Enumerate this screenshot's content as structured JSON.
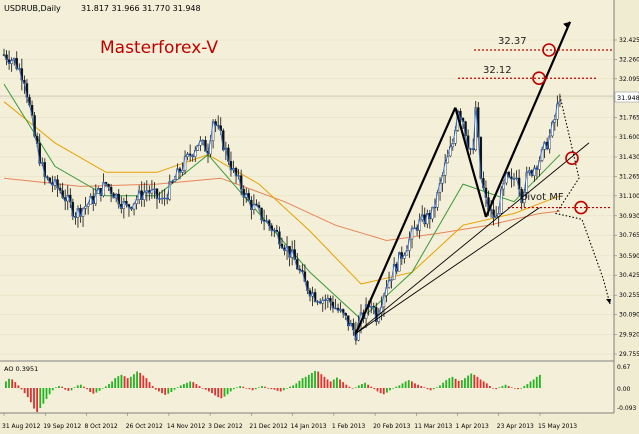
{
  "chart_data": {
    "type": "candlestick",
    "header": {
      "symbol_tf": "USDRUB,Daily",
      "ohlc": "31.817 31.966 31.770 31.948"
    },
    "watermark": "Masterforex-V",
    "price_axis": {
      "range": [
        29.74,
        32.58
      ],
      "ticks": [
        "32.425",
        "32.260",
        "32.095",
        "31.930",
        "31.765",
        "31.600",
        "31.430",
        "31.265",
        "31.100",
        "30.930",
        "30.765",
        "30.590",
        "30.425",
        "30.255",
        "30.090",
        "29.920",
        "29.755"
      ],
      "current_price": "31.948",
      "current_value": 31.948
    },
    "date_axis": [
      "31 Aug 2012",
      "19 Sep 2012",
      "8 Oct 2012",
      "26 Oct 2012",
      "14 Nov 2012",
      "3 Dec 2012",
      "21 Dec 2012",
      "14 Jan 2013",
      "1 Feb 2013",
      "20 Feb 2013",
      "11 Mar 2013",
      "1 Apr 2013",
      "23 Apr 2013",
      "15 May 2013"
    ],
    "candles": {
      "count": 188,
      "close_path": [
        [
          0,
          32.3
        ],
        [
          4,
          32.25
        ],
        [
          8,
          32.1
        ],
        [
          12,
          31.6
        ],
        [
          16,
          31.25
        ],
        [
          22,
          31.15
        ],
        [
          28,
          30.95
        ],
        [
          34,
          31.05
        ],
        [
          40,
          31.2
        ],
        [
          48,
          31.0
        ],
        [
          56,
          31.15
        ],
        [
          62,
          31.05
        ],
        [
          70,
          31.35
        ],
        [
          76,
          31.55
        ],
        [
          80,
          31.5
        ],
        [
          82,
          31.75
        ],
        [
          85,
          31.6
        ],
        [
          90,
          31.3
        ],
        [
          96,
          31.05
        ],
        [
          102,
          30.9
        ],
        [
          108,
          30.75
        ],
        [
          114,
          30.55
        ],
        [
          118,
          30.35
        ],
        [
          122,
          30.25
        ],
        [
          128,
          30.2
        ],
        [
          134,
          30.05
        ],
        [
          138,
          29.93
        ],
        [
          140,
          30.05
        ],
        [
          144,
          30.2
        ],
        [
          146,
          30.08
        ],
        [
          150,
          30.35
        ],
        [
          156,
          30.6
        ],
        [
          162,
          30.85
        ],
        [
          168,
          30.95
        ],
        [
          170,
          31.1
        ],
        [
          173,
          31.35
        ],
        [
          176,
          31.55
        ],
        [
          178,
          31.85
        ],
        [
          180,
          31.75
        ],
        [
          182,
          31.55
        ],
        [
          184,
          31.45
        ],
        [
          185,
          31.85
        ],
        [
          186,
          31.55
        ],
        [
          187,
          31.25
        ],
        [
          189,
          31.05
        ],
        [
          191,
          30.95
        ],
        [
          193,
          30.9
        ],
        [
          195,
          31.1
        ],
        [
          197,
          31.25
        ],
        [
          199,
          31.2
        ],
        [
          201,
          31.3
        ],
        [
          203,
          31.1
        ],
        [
          205,
          31.25
        ],
        [
          208,
          31.35
        ],
        [
          211,
          31.45
        ],
        [
          214,
          31.6
        ],
        [
          216,
          31.75
        ],
        [
          217,
          31.85
        ],
        [
          218,
          31.95
        ]
      ]
    },
    "indicators": {
      "ma_fast": [
        [
          0,
          32.05
        ],
        [
          20,
          31.35
        ],
        [
          40,
          31.1
        ],
        [
          60,
          31.1
        ],
        [
          80,
          31.45
        ],
        [
          100,
          30.95
        ],
        [
          120,
          30.45
        ],
        [
          140,
          30.05
        ],
        [
          160,
          30.45
        ],
        [
          180,
          31.2
        ],
        [
          200,
          31.05
        ],
        [
          218,
          31.45
        ]
      ],
      "ma_mid": [
        [
          0,
          31.9
        ],
        [
          20,
          31.55
        ],
        [
          40,
          31.3
        ],
        [
          60,
          31.3
        ],
        [
          80,
          31.45
        ],
        [
          100,
          31.2
        ],
        [
          120,
          30.8
        ],
        [
          140,
          30.35
        ],
        [
          160,
          30.45
        ],
        [
          180,
          30.85
        ],
        [
          200,
          30.95
        ],
        [
          218,
          31.1
        ]
      ],
      "ma_slow": [
        [
          0,
          31.25
        ],
        [
          30,
          31.18
        ],
        [
          60,
          31.2
        ],
        [
          85,
          31.25
        ],
        [
          110,
          31.05
        ],
        [
          130,
          30.85
        ],
        [
          150,
          30.72
        ],
        [
          170,
          30.78
        ],
        [
          190,
          30.85
        ],
        [
          210,
          30.95
        ],
        [
          218,
          30.97
        ]
      ]
    },
    "annotations": {
      "levels": [
        {
          "label": "32.37",
          "value": 32.34
        },
        {
          "label": "32.12",
          "value": 32.1
        },
        {
          "label": "pivot MF",
          "value": 31.0
        }
      ]
    },
    "oscillator": {
      "label": "AO 0.3951",
      "ticks": [
        "0.67",
        "0.00",
        "-0.093"
      ],
      "range": [
        -0.84,
        0.67
      ],
      "bars": [
        0.2,
        0.28,
        0.26,
        0.18,
        0.08,
        -0.05,
        -0.18,
        -0.32,
        -0.5,
        -0.72,
        -0.84,
        -0.7,
        -0.55,
        -0.38,
        -0.22,
        -0.08,
        0.02,
        0.06,
        0.04,
        -0.06,
        -0.1,
        -0.08,
        0.02,
        0.08,
        0.1,
        0.04,
        -0.04,
        -0.14,
        -0.2,
        -0.16,
        -0.1,
        -0.02,
        0.05,
        0.12,
        0.2,
        0.3,
        0.36,
        0.4,
        0.36,
        0.3,
        0.34,
        0.42,
        0.5,
        0.46,
        0.38,
        0.3,
        0.18,
        0.06,
        -0.06,
        -0.12,
        -0.18,
        -0.24,
        -0.2,
        -0.14,
        -0.06,
        0.02,
        0.08,
        0.12,
        0.16,
        0.2,
        0.18,
        0.12,
        0.06,
        0.0,
        -0.06,
        -0.12,
        -0.18,
        -0.26,
        -0.32,
        -0.36,
        -0.3,
        -0.22,
        -0.12,
        -0.04,
        0.02,
        0.06,
        0.04,
        0.0,
        -0.04,
        -0.08,
        -0.04,
        0.02,
        0.06,
        0.04,
        0.0,
        -0.04,
        -0.06,
        -0.1,
        -0.12,
        -0.08,
        -0.02,
        0.04,
        0.08,
        0.14,
        0.22,
        0.3,
        0.34,
        0.4,
        0.46,
        0.52,
        0.5,
        0.42,
        0.34,
        0.26,
        0.2,
        0.26,
        0.32,
        0.26,
        0.18,
        0.1,
        0.04,
        0.0,
        0.02,
        0.08,
        0.12,
        0.16,
        0.1,
        0.04,
        -0.04,
        -0.12,
        -0.18,
        -0.22,
        -0.16,
        -0.08,
        0.0,
        0.04,
        0.08,
        0.14,
        0.2,
        0.24,
        0.2,
        0.14,
        0.1,
        0.06,
        0.02,
        -0.04,
        -0.08,
        -0.04,
        0.02,
        0.08,
        0.16,
        0.24,
        0.3,
        0.34,
        0.28,
        0.22,
        0.24,
        0.3,
        0.38,
        0.44,
        0.4,
        0.34,
        0.26,
        0.2,
        0.14,
        0.06,
        0.0,
        -0.04,
        0.02,
        0.06,
        0.1,
        0.06,
        0.02,
        -0.02,
        -0.04,
        0.0,
        0.06,
        0.12,
        0.2,
        0.26,
        0.34,
        0.4
      ]
    }
  }
}
